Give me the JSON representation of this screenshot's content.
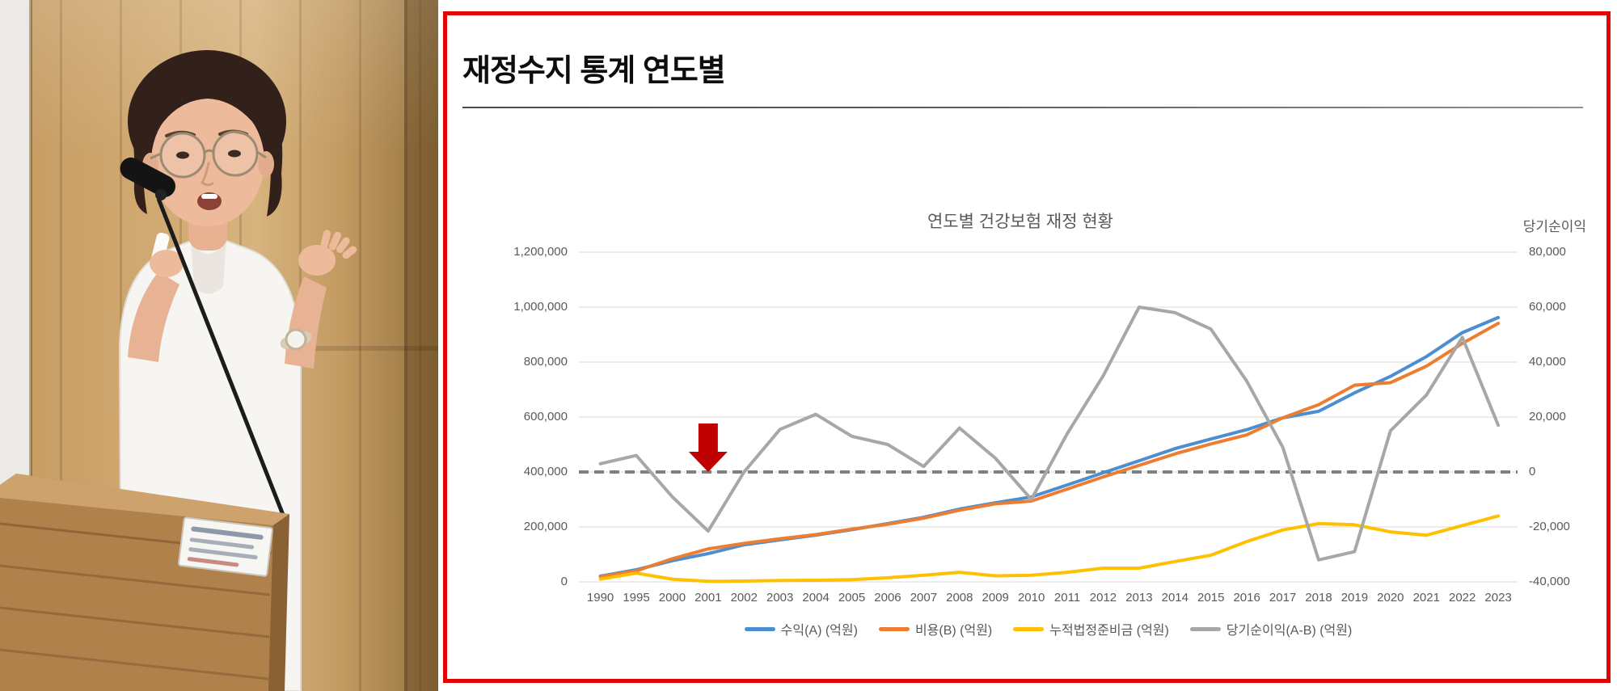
{
  "panel": {
    "title": "재정수지 통계 연도별",
    "border_color": "#e30505"
  },
  "chart_data": {
    "type": "line",
    "title": "연도별 건강보험 재정 현황",
    "right_axis_title": "당기순이익",
    "grid": true,
    "legend_position": "bottom",
    "categories": [
      "1990",
      "1995",
      "2000",
      "2001",
      "2002",
      "2003",
      "2004",
      "2005",
      "2006",
      "2007",
      "2008",
      "2009",
      "2010",
      "2011",
      "2012",
      "2013",
      "2014",
      "2015",
      "2016",
      "2017",
      "2018",
      "2019",
      "2020",
      "2021",
      "2022",
      "2023"
    ],
    "series": [
      {
        "name": "수익(A) (억원)",
        "color": "#4d8ed1",
        "axis": "left",
        "values": [
          21000,
          44000,
          77000,
          103000,
          135000,
          153000,
          170000,
          190000,
          212000,
          235000,
          265000,
          288000,
          309000,
          353000,
          397000,
          441000,
          485000,
          520000,
          554000,
          597000,
          621000,
          688000,
          748000,
          820000,
          907000,
          962000
        ]
      },
      {
        "name": "비용(B) (억원)",
        "color": "#ed7d31",
        "axis": "left",
        "values": [
          19000,
          40000,
          84000,
          120000,
          140000,
          157000,
          172000,
          192000,
          210000,
          232000,
          261000,
          284000,
          294000,
          338000,
          382000,
          424000,
          466000,
          502000,
          535000,
          597000,
          645000,
          716000,
          725000,
          785000,
          868000,
          941000
        ]
      },
      {
        "name": "누적법정준비금 (억원)",
        "color": "#ffc000",
        "axis": "left",
        "values": [
          10000,
          32000,
          10000,
          2000,
          3000,
          5000,
          6000,
          8000,
          15000,
          24000,
          35000,
          22000,
          24000,
          35000,
          50000,
          50000,
          74000,
          97000,
          147000,
          189000,
          212000,
          208000,
          182000,
          170000,
          205000,
          240000
        ]
      },
      {
        "name": "당기순이익(A-B) (억원)",
        "color": "#a7a7a7",
        "axis": "right",
        "values": [
          3000,
          6000,
          -9000,
          -21500,
          0,
          15500,
          21000,
          13000,
          10000,
          2000,
          16000,
          5000,
          -10000,
          14000,
          35000,
          60000,
          58000,
          52000,
          33000,
          9000,
          -32000,
          -29000,
          15000,
          28000,
          49000,
          17000
        ]
      }
    ],
    "left_axis": {
      "min": 0,
      "max": 1200000,
      "step": 200000,
      "labels": [
        "1,200,000",
        "1,000,000",
        "800,000",
        "600,000",
        "400,000",
        "200,000",
        "0"
      ]
    },
    "right_axis": {
      "min": -40000,
      "max": 80000,
      "step": 20000,
      "labels": [
        "80,000",
        "60,000",
        "40,000",
        "20,000",
        "0",
        "-20,000",
        "-40,000"
      ]
    },
    "zero_line": {
      "left_value": 400000,
      "right_value": 0,
      "style": "dashed",
      "color": "#7f7f7f"
    },
    "annotation": {
      "type": "down-arrow",
      "category": "2001",
      "color": "#c00000"
    }
  }
}
